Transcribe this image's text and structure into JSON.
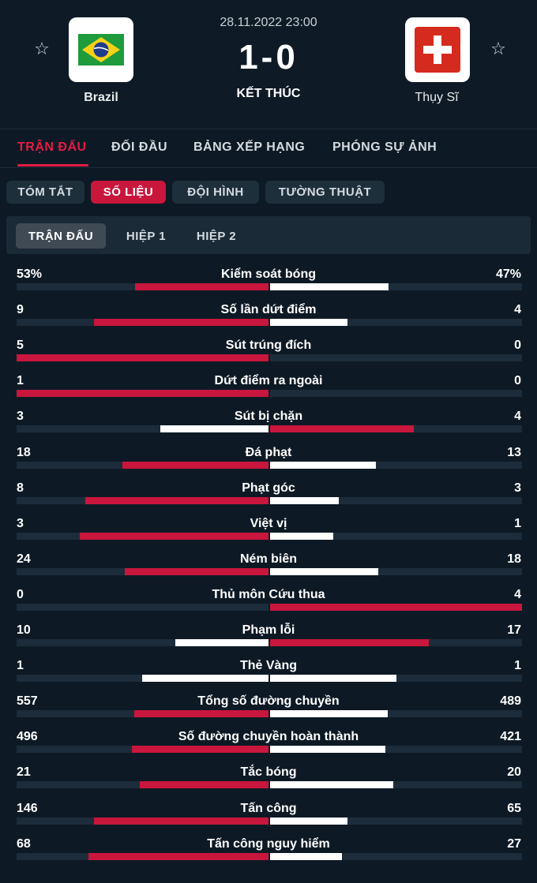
{
  "match": {
    "date": "28.11.2022 23:00",
    "score": "1-0",
    "status": "KẾT THÚC",
    "home": {
      "name": "Brazil",
      "logo_icon": "brazil-flag-icon"
    },
    "away": {
      "name": "Thụy Sĩ",
      "logo_icon": "switzerland-flag-icon"
    },
    "favorite_icon": "☆"
  },
  "nav": {
    "tabs": [
      {
        "label": "TRẬN ĐẤU",
        "active": true
      },
      {
        "label": "ĐỐI ĐẦU",
        "active": false
      },
      {
        "label": "BẢNG XẾP HẠNG",
        "active": false
      },
      {
        "label": "PHÓNG SỰ ẢNH",
        "active": false
      }
    ]
  },
  "subnav": {
    "tabs": [
      {
        "label": "TÓM TẮT",
        "active": false
      },
      {
        "label": "SỐ LIỆU",
        "active": true
      },
      {
        "label": "ĐỘI HÌNH",
        "active": false
      },
      {
        "label": "TƯỜNG THUẬT",
        "active": false
      }
    ]
  },
  "periods": {
    "tabs": [
      {
        "label": "TRẬN ĐẤU",
        "active": true
      },
      {
        "label": "HIỆP 1",
        "active": false
      },
      {
        "label": "HIỆP 2",
        "active": false
      }
    ]
  },
  "colors": {
    "accent": "#e41c45",
    "bar_red": "#c9163d",
    "bar_white": "#ffffff",
    "track": "#1c2c3a",
    "background": "#0d1a25"
  },
  "stats": [
    {
      "label": "Kiểm soát bóng",
      "home": "53%",
      "away": "47%",
      "home_share": 0.53,
      "away_share": 0.47,
      "leader": "home"
    },
    {
      "label": "Số lần dứt điểm",
      "home": "9",
      "away": "4",
      "home_share": 0.692,
      "away_share": 0.308,
      "leader": "home"
    },
    {
      "label": "Sút trúng đích",
      "home": "5",
      "away": "0",
      "home_share": 1.0,
      "away_share": 0.0,
      "leader": "home"
    },
    {
      "label": "Dứt điểm ra ngoài",
      "home": "1",
      "away": "0",
      "home_share": 1.0,
      "away_share": 0.0,
      "leader": "home"
    },
    {
      "label": "Sút bị chặn",
      "home": "3",
      "away": "4",
      "home_share": 0.429,
      "away_share": 0.571,
      "leader": "away"
    },
    {
      "label": "Đá phạt",
      "home": "18",
      "away": "13",
      "home_share": 0.581,
      "away_share": 0.419,
      "leader": "home"
    },
    {
      "label": "Phạt góc",
      "home": "8",
      "away": "3",
      "home_share": 0.727,
      "away_share": 0.273,
      "leader": "home"
    },
    {
      "label": "Việt vị",
      "home": "3",
      "away": "1",
      "home_share": 0.75,
      "away_share": 0.25,
      "leader": "home"
    },
    {
      "label": "Ném biên",
      "home": "24",
      "away": "18",
      "home_share": 0.571,
      "away_share": 0.429,
      "leader": "home"
    },
    {
      "label": "Thủ môn Cứu thua",
      "home": "0",
      "away": "4",
      "home_share": 0.0,
      "away_share": 1.0,
      "leader": "away"
    },
    {
      "label": "Phạm lỗi",
      "home": "10",
      "away": "17",
      "home_share": 0.37,
      "away_share": 0.63,
      "leader": "away"
    },
    {
      "label": "Thẻ Vàng",
      "home": "1",
      "away": "1",
      "home_share": 0.5,
      "away_share": 0.5,
      "leader": "none"
    },
    {
      "label": "Tổng số đường chuyền",
      "home": "557",
      "away": "489",
      "home_share": 0.532,
      "away_share": 0.468,
      "leader": "home"
    },
    {
      "label": "Số đường chuyền hoàn thành",
      "home": "496",
      "away": "421",
      "home_share": 0.541,
      "away_share": 0.459,
      "leader": "home"
    },
    {
      "label": "Tắc bóng",
      "home": "21",
      "away": "20",
      "home_share": 0.512,
      "away_share": 0.488,
      "leader": "home"
    },
    {
      "label": "Tấn công",
      "home": "146",
      "away": "65",
      "home_share": 0.692,
      "away_share": 0.308,
      "leader": "home"
    },
    {
      "label": "Tấn công nguy hiểm",
      "home": "68",
      "away": "27",
      "home_share": 0.716,
      "away_share": 0.284,
      "leader": "home"
    }
  ]
}
